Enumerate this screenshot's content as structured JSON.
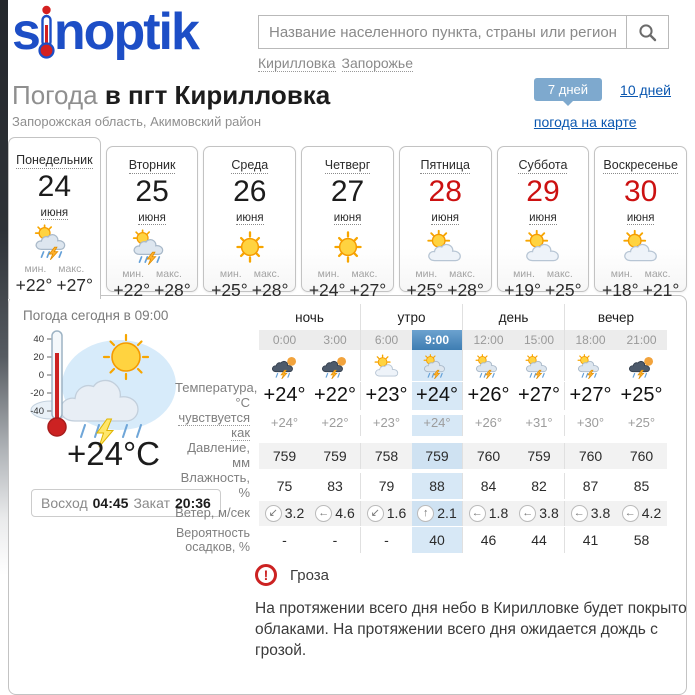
{
  "colors": {
    "logo_blue": "#1d4ec6",
    "link_blue": "#0a57b0",
    "days_button_bg": "#7ea9ce",
    "weekend_red": "#cc1111",
    "selected_hour_bg": "#3e7db2",
    "column_highlight": "#d7e8f6",
    "row_stripe": "#f2f2f2",
    "alert_red": "#cc2222"
  },
  "header": {
    "logo_prefix": "s",
    "logo_suffix": "noptik",
    "search_placeholder": "Название населенного пункта, страны или региона",
    "quick_links": [
      {
        "label": "Кирилловка"
      },
      {
        "label": "Запорожье"
      }
    ]
  },
  "title": {
    "prefix": "Погода",
    "city": "в пгт Кирилловка",
    "subtitle": "Запорожская область, Акимовский район",
    "days7": "7 дней",
    "days10": "10 дней",
    "map_link": "погода на карте"
  },
  "week": {
    "min_label": "мин.",
    "max_label": "макс.",
    "month": "июня",
    "tabs": [
      {
        "day": "Понедельник",
        "date": "24",
        "icon": "day-storm",
        "min": "+22°",
        "max": "+27°"
      },
      {
        "day": "Вторник",
        "date": "25",
        "icon": "day-storm",
        "min": "+22°",
        "max": "+28°"
      },
      {
        "day": "Среда",
        "date": "26",
        "icon": "sunny",
        "min": "+25°",
        "max": "+28°"
      },
      {
        "day": "Четверг",
        "date": "27",
        "icon": "sunny",
        "min": "+24°",
        "max": "+27°"
      },
      {
        "day": "Пятница",
        "date": "28",
        "icon": "sun-cloud",
        "min": "+25°",
        "max": "+28°"
      },
      {
        "day": "Суббота",
        "date": "29",
        "icon": "sun-cloud",
        "min": "+19°",
        "max": "+25°"
      },
      {
        "day": "Воскресенье",
        "date": "30",
        "icon": "sun-cloud",
        "min": "+18°",
        "max": "+21°"
      }
    ]
  },
  "today": {
    "title": "Погода сегодня в 09:00",
    "current_temp": "+24°C",
    "thermo_scale": [
      "40",
      "20",
      "0",
      "-20",
      "-40"
    ],
    "sunrise_label": "Восход",
    "sunrise": "04:45",
    "sunset_label": "Закат",
    "sunset": "20:36"
  },
  "forecast": {
    "periods": [
      "ночь",
      "утро",
      "день",
      "вечер"
    ],
    "hours": [
      "0:00",
      "3:00",
      "6:00",
      "9:00",
      "12:00",
      "15:00",
      "18:00",
      "21:00"
    ],
    "selected_hour": "9:00",
    "icons": [
      "night-storm",
      "night-storm",
      "sun-cloud",
      "day-storm",
      "day-storm",
      "day-storm",
      "day-storm",
      "night-storm"
    ],
    "rows": {
      "temperature": {
        "label": "Температура, °C",
        "values": [
          "+24°",
          "+22°",
          "+23°",
          "+24°",
          "+26°",
          "+27°",
          "+27°",
          "+25°"
        ]
      },
      "feels_like": {
        "label": "чувствуется как",
        "values": [
          "+24°",
          "+22°",
          "+23°",
          "+24°",
          "+26°",
          "+31°",
          "+30°",
          "+25°"
        ]
      },
      "pressure": {
        "label": "Давление, мм",
        "values": [
          "759",
          "759",
          "758",
          "759",
          "760",
          "759",
          "760",
          "760"
        ]
      },
      "humidity": {
        "label": "Влажность, %",
        "values": [
          "75",
          "83",
          "79",
          "88",
          "84",
          "82",
          "87",
          "85"
        ]
      },
      "wind": {
        "label": "Ветер, м/сек",
        "arrows": [
          "↙",
          "←",
          "↙",
          "↑",
          "←",
          "←",
          "←",
          "←"
        ],
        "values": [
          "3.2",
          "4.6",
          "1.6",
          "2.1",
          "1.8",
          "3.8",
          "3.8",
          "4.2"
        ]
      },
      "precipitation": {
        "label": "Вероятность осадков, %",
        "values": [
          "-",
          "-",
          "-",
          "40",
          "46",
          "44",
          "41",
          "58"
        ]
      }
    }
  },
  "alert": {
    "title": "Гроза",
    "text": "На протяжении всего дня небо в Кирилловке будет покрыто облаками. На протяжении всего дня ожидается дождь с грозой."
  }
}
